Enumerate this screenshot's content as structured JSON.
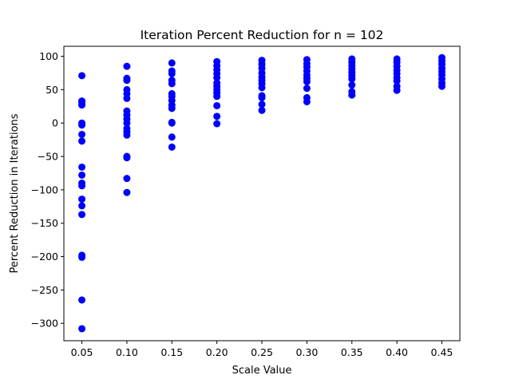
{
  "chart_data": {
    "type": "scatter",
    "title": "Iteration Percent Reduction for n = 102",
    "xlabel": "Scale Value",
    "ylabel": "Percent Reduction in Iterations",
    "xlim": [
      0.03,
      0.47
    ],
    "ylim": [
      -326,
      115
    ],
    "x_ticks": [
      0.05,
      0.1,
      0.15,
      0.2,
      0.25,
      0.3,
      0.35,
      0.4,
      0.45
    ],
    "x_tick_labels": [
      "0.05",
      "0.10",
      "0.15",
      "0.20",
      "0.25",
      "0.30",
      "0.35",
      "0.40",
      "0.45"
    ],
    "y_ticks": [
      100,
      50,
      0,
      -50,
      -100,
      -150,
      -200,
      -250,
      -300
    ],
    "y_tick_labels": [
      "100",
      "50",
      "0",
      "−50",
      "−100",
      "−150",
      "−200",
      "−250",
      "−300"
    ],
    "grid": false,
    "legend": false,
    "marker_color": "#0000ff",
    "series": [
      {
        "points": [
          [
            0.05,
            71
          ],
          [
            0.05,
            33
          ],
          [
            0.05,
            30
          ],
          [
            0.05,
            27
          ],
          [
            0.05,
            0
          ],
          [
            0.05,
            -3
          ],
          [
            0.05,
            -17
          ],
          [
            0.05,
            -27
          ],
          [
            0.05,
            -66
          ],
          [
            0.05,
            -78
          ],
          [
            0.05,
            -90
          ],
          [
            0.05,
            -94
          ],
          [
            0.05,
            -114
          ],
          [
            0.05,
            -124
          ],
          [
            0.05,
            -137
          ],
          [
            0.05,
            -198
          ],
          [
            0.05,
            -201
          ],
          [
            0.05,
            -265
          ],
          [
            0.05,
            -308
          ],
          [
            0.1,
            85
          ],
          [
            0.1,
            67
          ],
          [
            0.1,
            64
          ],
          [
            0.1,
            50
          ],
          [
            0.1,
            44
          ],
          [
            0.1,
            37
          ],
          [
            0.1,
            18
          ],
          [
            0.1,
            12
          ],
          [
            0.1,
            6
          ],
          [
            0.1,
            0
          ],
          [
            0.1,
            -8
          ],
          [
            0.1,
            -13
          ],
          [
            0.1,
            -18
          ],
          [
            0.1,
            -50
          ],
          [
            0.1,
            -52
          ],
          [
            0.1,
            -83
          ],
          [
            0.1,
            -104
          ],
          [
            0.15,
            90
          ],
          [
            0.15,
            78
          ],
          [
            0.15,
            74
          ],
          [
            0.15,
            64
          ],
          [
            0.15,
            59
          ],
          [
            0.15,
            44
          ],
          [
            0.15,
            40
          ],
          [
            0.15,
            34
          ],
          [
            0.15,
            27
          ],
          [
            0.15,
            22
          ],
          [
            0.15,
            1
          ],
          [
            0.15,
            0
          ],
          [
            0.15,
            -21
          ],
          [
            0.15,
            -36
          ],
          [
            0.2,
            92
          ],
          [
            0.2,
            86
          ],
          [
            0.2,
            80
          ],
          [
            0.2,
            74
          ],
          [
            0.2,
            68
          ],
          [
            0.2,
            60
          ],
          [
            0.2,
            55
          ],
          [
            0.2,
            50
          ],
          [
            0.2,
            45
          ],
          [
            0.2,
            40
          ],
          [
            0.2,
            26
          ],
          [
            0.2,
            10
          ],
          [
            0.2,
            -1
          ],
          [
            0.25,
            94
          ],
          [
            0.25,
            88
          ],
          [
            0.25,
            82
          ],
          [
            0.25,
            75
          ],
          [
            0.25,
            69
          ],
          [
            0.25,
            64
          ],
          [
            0.25,
            59
          ],
          [
            0.25,
            53
          ],
          [
            0.25,
            41
          ],
          [
            0.25,
            38
          ],
          [
            0.25,
            28
          ],
          [
            0.25,
            19
          ],
          [
            0.3,
            95
          ],
          [
            0.3,
            89
          ],
          [
            0.3,
            84
          ],
          [
            0.3,
            78
          ],
          [
            0.3,
            72
          ],
          [
            0.3,
            67
          ],
          [
            0.3,
            62
          ],
          [
            0.3,
            52
          ],
          [
            0.3,
            38
          ],
          [
            0.3,
            32
          ],
          [
            0.35,
            96
          ],
          [
            0.35,
            91
          ],
          [
            0.35,
            86
          ],
          [
            0.35,
            81
          ],
          [
            0.35,
            76
          ],
          [
            0.35,
            71
          ],
          [
            0.35,
            66
          ],
          [
            0.35,
            57
          ],
          [
            0.35,
            47
          ],
          [
            0.35,
            42
          ],
          [
            0.4,
            96
          ],
          [
            0.4,
            91
          ],
          [
            0.4,
            85
          ],
          [
            0.4,
            79
          ],
          [
            0.4,
            74
          ],
          [
            0.4,
            68
          ],
          [
            0.4,
            63
          ],
          [
            0.4,
            55
          ],
          [
            0.4,
            49
          ],
          [
            0.45,
            98
          ],
          [
            0.45,
            93
          ],
          [
            0.45,
            88
          ],
          [
            0.45,
            82
          ],
          [
            0.45,
            77
          ],
          [
            0.45,
            72
          ],
          [
            0.45,
            66
          ],
          [
            0.45,
            60
          ],
          [
            0.45,
            55
          ]
        ]
      }
    ]
  }
}
